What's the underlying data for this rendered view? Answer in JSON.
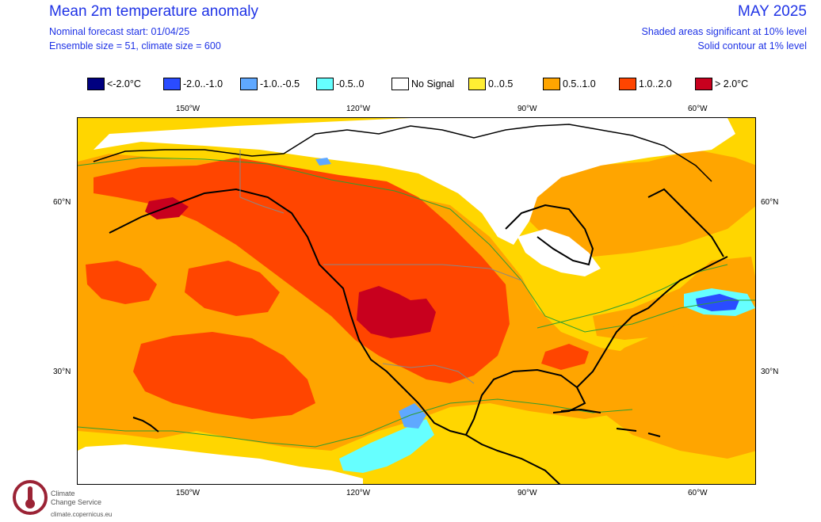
{
  "header": {
    "title": "Mean 2m temperature anomaly",
    "forecast_start": "Nominal forecast start: 01/04/25",
    "ensemble": "Ensemble size = 51, climate size = 600",
    "period": "MAY 2025",
    "significance_shaded": "Shaded areas significant at 10% level",
    "significance_contour": "Solid contour at 1% level"
  },
  "legend": [
    {
      "label": "<-2.0°C",
      "color": "#000080"
    },
    {
      "label": "-2.0..-1.0",
      "color": "#2a4cff"
    },
    {
      "label": "-1.0..-0.5",
      "color": "#5fa8ff"
    },
    {
      "label": "-0.5..0",
      "color": "#66ffff"
    },
    {
      "label": "No Signal",
      "color": "#ffffff"
    },
    {
      "label": "0..0.5",
      "color": "#ffee33"
    },
    {
      "label": "0.5..1.0",
      "color": "#ffa500"
    },
    {
      "label": "1.0..2.0",
      "color": "#ff4500"
    },
    {
      "label": "> 2.0°C",
      "color": "#c8001e"
    }
  ],
  "axes": {
    "top_lon_labels": [
      "150°W",
      "120°W",
      "90°W",
      "60°W"
    ],
    "bottom_lon_labels": [
      "150°W",
      "120°W",
      "90°W",
      "60°W"
    ],
    "left_lat_labels": [
      "60°N",
      "30°N"
    ],
    "right_lat_labels": [
      "60°N",
      "30°N"
    ]
  },
  "logo": {
    "line1": "Climate",
    "line2": "Change Service",
    "url": "climate.copernicus.eu"
  },
  "colors": {
    "text_blue": "#1f33e6",
    "contour_green": "#2f9e2f",
    "coast": "#000000",
    "border": "#888888"
  }
}
